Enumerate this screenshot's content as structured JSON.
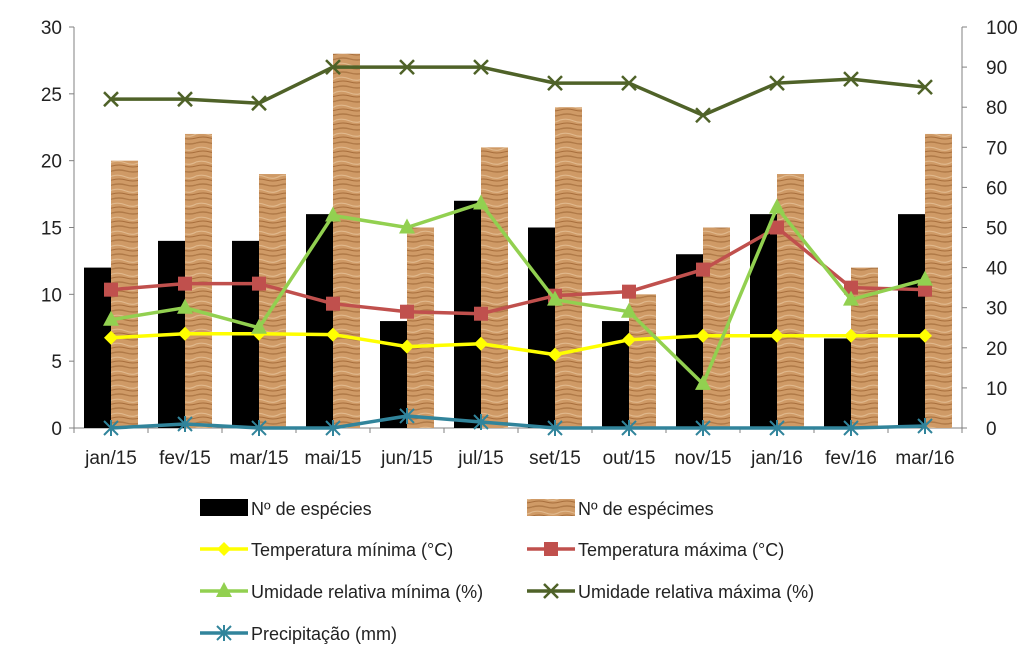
{
  "chart_data": {
    "type": "bar",
    "categories": [
      "jan/15",
      "fev/15",
      "mar/15",
      "mai/15",
      "jun/15",
      "jul/15",
      "set/15",
      "out/15",
      "nov/15",
      "jan/16",
      "fev/16",
      "mar/16"
    ],
    "y_left": {
      "lim": [
        0,
        30
      ],
      "ticks": [
        "0",
        "5",
        "10",
        "15",
        "20",
        "25",
        "30"
      ]
    },
    "y_right": {
      "lim": [
        0,
        100
      ],
      "ticks": [
        "0",
        "10",
        "20",
        "30",
        "40",
        "50",
        "60",
        "70",
        "80",
        "90",
        "100"
      ]
    },
    "grid": false,
    "legend_position": "bottom",
    "series": [
      {
        "name": "Nº de espécies",
        "kind": "bar",
        "axis": "left",
        "color": "#000000",
        "values": [
          12,
          14,
          14,
          16,
          8,
          17,
          15,
          8,
          13,
          16,
          6.7,
          16
        ]
      },
      {
        "name": "Nº de espécimes",
        "kind": "bar",
        "axis": "left",
        "color": "#c9925e",
        "values": [
          20,
          22,
          19,
          28,
          15,
          21,
          24,
          10,
          15,
          19,
          12,
          22
        ]
      },
      {
        "name": "Temperatura mínima (°C)",
        "kind": "line",
        "axis": "right",
        "color": "#ffff00",
        "marker": "diamond",
        "values": [
          22.5,
          23.5,
          23.5,
          23.3,
          20.3,
          21,
          18.3,
          22,
          23,
          23,
          23,
          23
        ]
      },
      {
        "name": "Temperatura máxima (°C)",
        "kind": "line",
        "axis": "right",
        "color": "#c0504d",
        "marker": "square",
        "values": [
          34.5,
          36,
          36,
          31,
          29,
          28.5,
          33,
          34,
          39.5,
          50,
          35,
          34.5
        ]
      },
      {
        "name": "Umidade relativa mínima (%)",
        "kind": "line",
        "axis": "right",
        "color": "#92d050",
        "marker": "triangle",
        "values": [
          27,
          30,
          25,
          53,
          50,
          56,
          32,
          29,
          11,
          55,
          32,
          37
        ]
      },
      {
        "name": "Umidade relativa máxima (%)",
        "kind": "line",
        "axis": "right",
        "color": "#4f6228",
        "marker": "x",
        "values": [
          82,
          82,
          81,
          90,
          90,
          90,
          86,
          86,
          78,
          86,
          87,
          85
        ]
      },
      {
        "name": "Precipitação (mm)",
        "kind": "line",
        "axis": "right",
        "color": "#31849b",
        "marker": "asterisk",
        "values": [
          0,
          1,
          0,
          0,
          3,
          1.5,
          0,
          0,
          0,
          0,
          0,
          0.5
        ]
      }
    ]
  }
}
